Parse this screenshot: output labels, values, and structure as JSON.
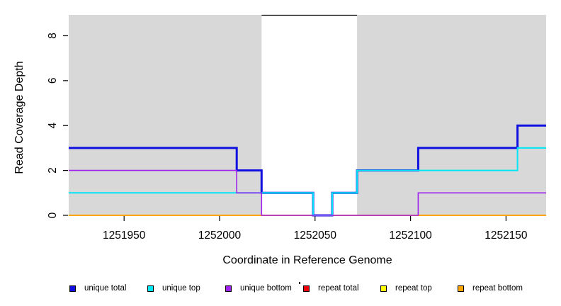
{
  "chart_data": {
    "type": "line",
    "step": true,
    "title": "",
    "xlabel": "Coordinate in Reference Genome",
    "ylabel": "Read Coverage Depth",
    "xlim": [
      1251921,
      1252171
    ],
    "ylim": [
      0,
      9
    ],
    "x_ticks": [
      "1251950",
      "1252000",
      "1252050",
      "1252100",
      "1252150"
    ],
    "y_ticks": [
      "0",
      "2",
      "4",
      "6",
      "8"
    ],
    "grid": false,
    "plot_background": "#d8d8d8",
    "highlight_region": {
      "start": 1252022,
      "end": 1252072,
      "fill": "#ffffff",
      "top_border": "#000000"
    },
    "series": [
      {
        "name": "repeat total",
        "color": "#ee0000",
        "width": 1.5,
        "points": [
          [
            1251921,
            0
          ],
          [
            1252171,
            0
          ]
        ]
      },
      {
        "name": "repeat top",
        "color": "#ffff00",
        "width": 1.5,
        "points": [
          [
            1251921,
            0
          ],
          [
            1252171,
            0
          ]
        ]
      },
      {
        "name": "repeat bottom",
        "color": "#ffa500",
        "width": 2,
        "points": [
          [
            1251921,
            0
          ],
          [
            1252171,
            0
          ]
        ]
      },
      {
        "name": "unique total",
        "color": "#1010e0",
        "width": 3,
        "points": [
          [
            1251921,
            3
          ],
          [
            1252009,
            3
          ],
          [
            1252009,
            2
          ],
          [
            1252022,
            2
          ],
          [
            1252022,
            1
          ],
          [
            1252049,
            1
          ],
          [
            1252049,
            0
          ],
          [
            1252059,
            0
          ],
          [
            1252059,
            1
          ],
          [
            1252072,
            1
          ],
          [
            1252072,
            2
          ],
          [
            1252104,
            2
          ],
          [
            1252104,
            3
          ],
          [
            1252156,
            3
          ],
          [
            1252156,
            4
          ],
          [
            1252171,
            4
          ]
        ]
      },
      {
        "name": "unique top",
        "color": "#00e6f5",
        "width": 2,
        "points": [
          [
            1251921,
            1
          ],
          [
            1252049,
            1
          ],
          [
            1252049,
            0
          ],
          [
            1252059,
            0
          ],
          [
            1252059,
            1
          ],
          [
            1252072,
            1
          ],
          [
            1252072,
            2
          ],
          [
            1252156,
            2
          ],
          [
            1252156,
            3
          ],
          [
            1252171,
            3
          ]
        ]
      },
      {
        "name": "unique bottom",
        "color": "#a020f0",
        "width": 1.6,
        "points": [
          [
            1251921,
            2
          ],
          [
            1252009,
            2
          ],
          [
            1252009,
            1
          ],
          [
            1252022,
            1
          ],
          [
            1252022,
            0
          ],
          [
            1252104,
            0
          ],
          [
            1252104,
            1
          ],
          [
            1252171,
            1
          ]
        ]
      }
    ],
    "legend_position": "bottom",
    "legend": [
      {
        "label": "unique total",
        "color": "#1010e0"
      },
      {
        "label": "unique top",
        "color": "#00e6f5"
      },
      {
        "label": "unique bottom",
        "color": "#a020f0"
      },
      {
        "label": "repeat total",
        "color": "#ee0000"
      },
      {
        "label": "repeat top",
        "color": "#ffff00"
      },
      {
        "label": "repeat bottom",
        "color": "#ffa500"
      }
    ]
  }
}
